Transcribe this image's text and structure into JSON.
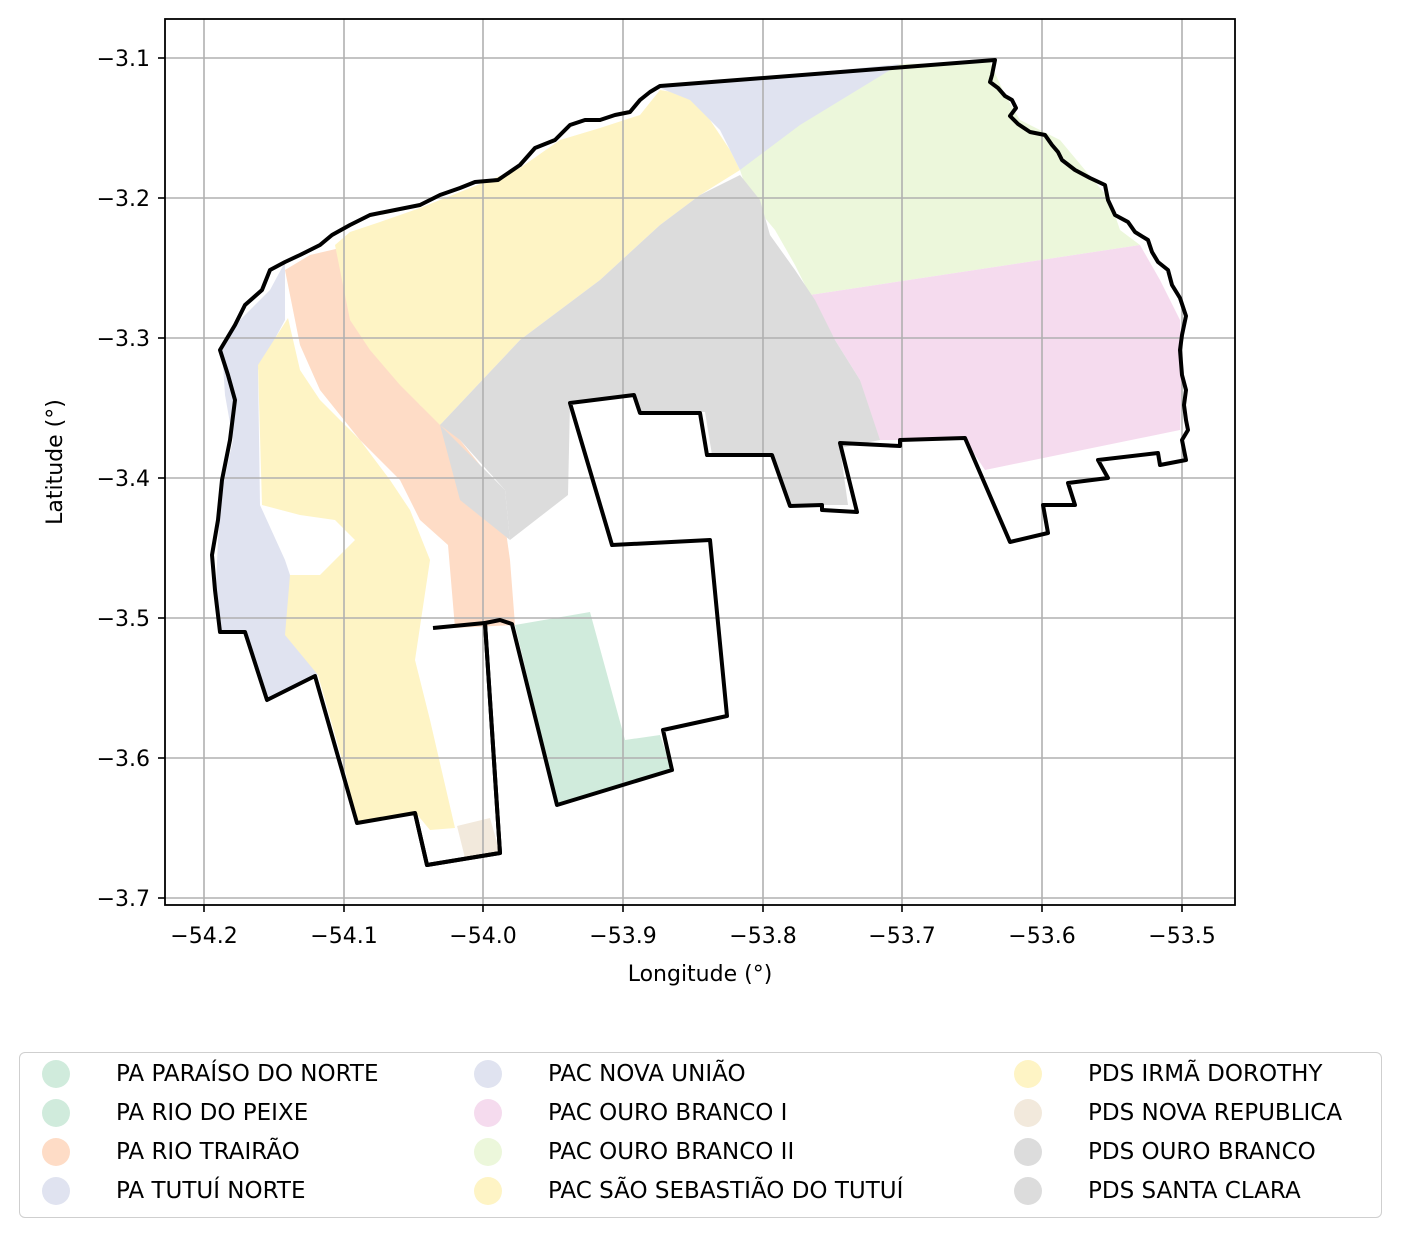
{
  "map": {
    "xlabel": "Longitude (°)",
    "ylabel": "Latitude (°)",
    "x_ticks": [
      "−54.2",
      "−54.1",
      "−54.0",
      "−53.9",
      "−53.8",
      "−53.7",
      "−53.6",
      "−53.5"
    ],
    "y_ticks": [
      "−3.1",
      "−3.2",
      "−3.3",
      "−3.4",
      "−3.5",
      "−3.6",
      "−3.7"
    ],
    "grid": true,
    "legend_position": "bottom-center"
  },
  "legend": [
    {
      "label": "PA PARAÍSO DO NORTE",
      "color": "#d0ebdc"
    },
    {
      "label": "PA RIO DO PEIXE",
      "color": "#d0ebdc"
    },
    {
      "label": "PA RIO TRAIRÃO",
      "color": "#fedcc6"
    },
    {
      "label": "PA TUTUÍ NORTE",
      "color": "#e0e3f0"
    },
    {
      "label": "PAC NOVA UNIÃO",
      "color": "#e0e3f0"
    },
    {
      "label": "PAC OURO BRANCO I",
      "color": "#f5dbee"
    },
    {
      "label": "PAC OURO BRANCO II",
      "color": "#ecf7db"
    },
    {
      "label": "PAC SÃO SEBASTIÃO DO TUTUÍ",
      "color": "#fef4c5"
    },
    {
      "label": "PDS IRMÃ DOROTHY",
      "color": "#fef4c5"
    },
    {
      "label": "PDS NOVA REPUBLICA",
      "color": "#f2e9dc"
    },
    {
      "label": "PDS OURO BRANCO",
      "color": "#dcdcdc"
    },
    {
      "label": "PDS SANTA CLARA",
      "color": "#dcdcdc"
    }
  ]
}
